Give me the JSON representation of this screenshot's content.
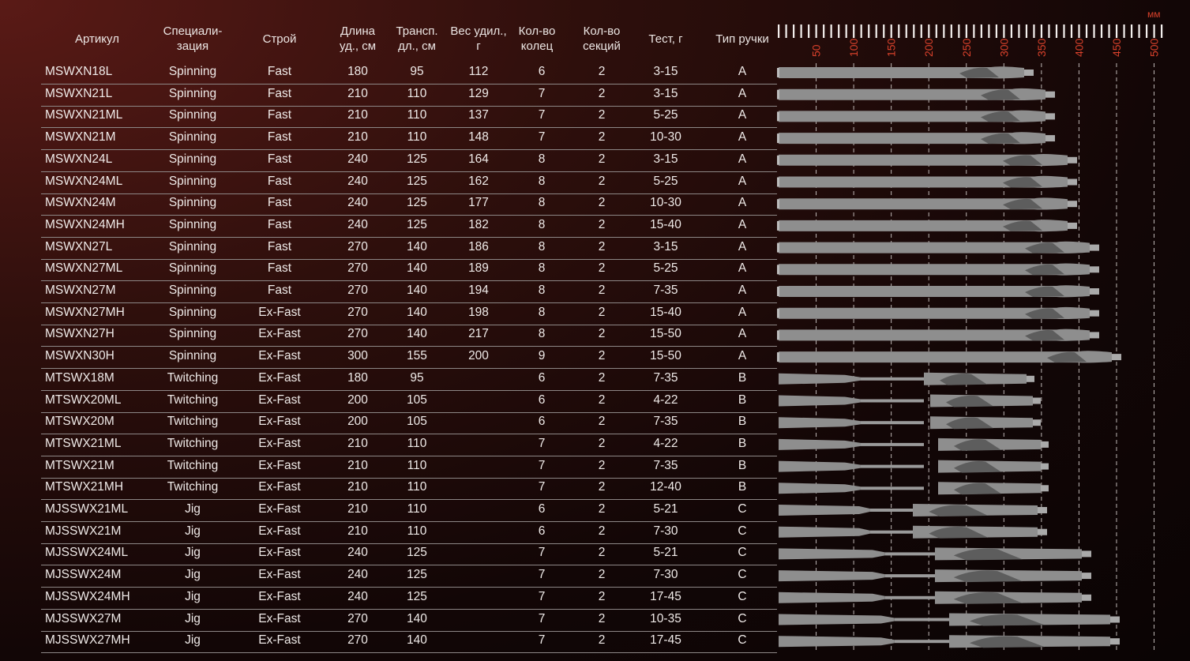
{
  "header": {
    "columns": [
      {
        "key": "article",
        "lines": [
          "Артикул"
        ]
      },
      {
        "key": "spec",
        "lines": [
          "Специали-",
          "зация"
        ]
      },
      {
        "key": "action",
        "lines": [
          "Строй"
        ]
      },
      {
        "key": "length",
        "lines": [
          "Длина",
          "уд., см"
        ]
      },
      {
        "key": "transport",
        "lines": [
          "Трансп.",
          "дл., см"
        ]
      },
      {
        "key": "weight",
        "lines": [
          "Вес удил.,",
          "г"
        ]
      },
      {
        "key": "rings",
        "lines": [
          "Кол-во",
          "колец"
        ]
      },
      {
        "key": "sections",
        "lines": [
          "Кол-во",
          "секций"
        ]
      },
      {
        "key": "test",
        "lines": [
          "Тест, г"
        ]
      },
      {
        "key": "handle",
        "lines": [
          "Тип ручки"
        ]
      }
    ]
  },
  "scale": {
    "unit": "мм",
    "labels": [
      "50",
      "100",
      "150",
      "200",
      "250",
      "300",
      "350",
      "400",
      "450",
      "500"
    ],
    "accent_color": "#d9412b"
  },
  "rows": [
    {
      "article": "MSWXN18L",
      "spec": "Spinning",
      "action": "Fast",
      "length": "180",
      "transport": "95",
      "weight": "112",
      "rings": "6",
      "sections": "2",
      "test": "3-15",
      "handle": "A"
    },
    {
      "article": "MSWXN21L",
      "spec": "Spinning",
      "action": "Fast",
      "length": "210",
      "transport": "110",
      "weight": "129",
      "rings": "7",
      "sections": "2",
      "test": "3-15",
      "handle": "A"
    },
    {
      "article": "MSWXN21ML",
      "spec": "Spinning",
      "action": "Fast",
      "length": "210",
      "transport": "110",
      "weight": "137",
      "rings": "7",
      "sections": "2",
      "test": "5-25",
      "handle": "A"
    },
    {
      "article": "MSWXN21M",
      "spec": "Spinning",
      "action": "Fast",
      "length": "210",
      "transport": "110",
      "weight": "148",
      "rings": "7",
      "sections": "2",
      "test": "10-30",
      "handle": "A"
    },
    {
      "article": "MSWXN24L",
      "spec": "Spinning",
      "action": "Fast",
      "length": "240",
      "transport": "125",
      "weight": "164",
      "rings": "8",
      "sections": "2",
      "test": "3-15",
      "handle": "A"
    },
    {
      "article": "MSWXN24ML",
      "spec": "Spinning",
      "action": "Fast",
      "length": "240",
      "transport": "125",
      "weight": "162",
      "rings": "8",
      "sections": "2",
      "test": "5-25",
      "handle": "A"
    },
    {
      "article": "MSWXN24M",
      "spec": "Spinning",
      "action": "Fast",
      "length": "240",
      "transport": "125",
      "weight": "177",
      "rings": "8",
      "sections": "2",
      "test": "10-30",
      "handle": "A"
    },
    {
      "article": "MSWXN24MH",
      "spec": "Spinning",
      "action": "Fast",
      "length": "240",
      "transport": "125",
      "weight": "182",
      "rings": "8",
      "sections": "2",
      "test": "15-40",
      "handle": "A"
    },
    {
      "article": "MSWXN27L",
      "spec": "Spinning",
      "action": "Fast",
      "length": "270",
      "transport": "140",
      "weight": "186",
      "rings": "8",
      "sections": "2",
      "test": "3-15",
      "handle": "A"
    },
    {
      "article": "MSWXN27ML",
      "spec": "Spinning",
      "action": "Fast",
      "length": "270",
      "transport": "140",
      "weight": "189",
      "rings": "8",
      "sections": "2",
      "test": "5-25",
      "handle": "A"
    },
    {
      "article": "MSWXN27M",
      "spec": "Spinning",
      "action": "Fast",
      "length": "270",
      "transport": "140",
      "weight": "194",
      "rings": "8",
      "sections": "2",
      "test": "7-35",
      "handle": "A"
    },
    {
      "article": "MSWXN27MH",
      "spec": "Spinning",
      "action": "Ex-Fast",
      "length": "270",
      "transport": "140",
      "weight": "198",
      "rings": "8",
      "sections": "2",
      "test": "15-40",
      "handle": "A"
    },
    {
      "article": "MSWXN27H",
      "spec": "Spinning",
      "action": "Ex-Fast",
      "length": "270",
      "transport": "140",
      "weight": "217",
      "rings": "8",
      "sections": "2",
      "test": "15-50",
      "handle": "A"
    },
    {
      "article": "MSWXN30H",
      "spec": "Spinning",
      "action": "Ex-Fast",
      "length": "300",
      "transport": "155",
      "weight": "200",
      "rings": "9",
      "sections": "2",
      "test": "15-50",
      "handle": "A"
    },
    {
      "article": "MTSWX18M",
      "spec": "Twitching",
      "action": "Ex-Fast",
      "length": "180",
      "transport": "95",
      "weight": "",
      "rings": "6",
      "sections": "2",
      "test": "7-35",
      "handle": "B"
    },
    {
      "article": "MTSWX20ML",
      "spec": "Twitching",
      "action": "Ex-Fast",
      "length": "200",
      "transport": "105",
      "weight": "",
      "rings": "6",
      "sections": "2",
      "test": "4-22",
      "handle": "B"
    },
    {
      "article": "MTSWX20M",
      "spec": "Twitching",
      "action": "Ex-Fast",
      "length": "200",
      "transport": "105",
      "weight": "",
      "rings": "6",
      "sections": "2",
      "test": "7-35",
      "handle": "B"
    },
    {
      "article": "MTSWX21ML",
      "spec": "Twitching",
      "action": "Ex-Fast",
      "length": "210",
      "transport": "110",
      "weight": "",
      "rings": "7",
      "sections": "2",
      "test": "4-22",
      "handle": "B"
    },
    {
      "article": "MTSWX21M",
      "spec": "Twitching",
      "action": "Ex-Fast",
      "length": "210",
      "transport": "110",
      "weight": "",
      "rings": "7",
      "sections": "2",
      "test": "7-35",
      "handle": "B"
    },
    {
      "article": "MTSWX21MH",
      "spec": "Twitching",
      "action": "Ex-Fast",
      "length": "210",
      "transport": "110",
      "weight": "",
      "rings": "7",
      "sections": "2",
      "test": "12-40",
      "handle": "B"
    },
    {
      "article": "MJSSWX21ML",
      "spec": "Jig",
      "action": "Ex-Fast",
      "length": "210",
      "transport": "110",
      "weight": "",
      "rings": "6",
      "sections": "2",
      "test": "5-21",
      "handle": "C"
    },
    {
      "article": "MJSSWX21M",
      "spec": "Jig",
      "action": "Ex-Fast",
      "length": "210",
      "transport": "110",
      "weight": "",
      "rings": "6",
      "sections": "2",
      "test": "7-30",
      "handle": "C"
    },
    {
      "article": "MJSSWX24ML",
      "spec": "Jig",
      "action": "Ex-Fast",
      "length": "240",
      "transport": "125",
      "weight": "",
      "rings": "7",
      "sections": "2",
      "test": "5-21",
      "handle": "C"
    },
    {
      "article": "MJSSWX24M",
      "spec": "Jig",
      "action": "Ex-Fast",
      "length": "240",
      "transport": "125",
      "weight": "",
      "rings": "7",
      "sections": "2",
      "test": "7-30",
      "handle": "C"
    },
    {
      "article": "MJSSWX24MH",
      "spec": "Jig",
      "action": "Ex-Fast",
      "length": "240",
      "transport": "125",
      "weight": "",
      "rings": "7",
      "sections": "2",
      "test": "17-45",
      "handle": "C"
    },
    {
      "article": "MJSSWX27M",
      "spec": "Jig",
      "action": "Ex-Fast",
      "length": "270",
      "transport": "140",
      "weight": "",
      "rings": "7",
      "sections": "2",
      "test": "10-35",
      "handle": "C"
    },
    {
      "article": "MJSSWX27MH",
      "spec": "Jig",
      "action": "Ex-Fast",
      "length": "270",
      "transport": "140",
      "weight": "",
      "rings": "7",
      "sections": "2",
      "test": "17-45",
      "handle": "C"
    }
  ]
}
